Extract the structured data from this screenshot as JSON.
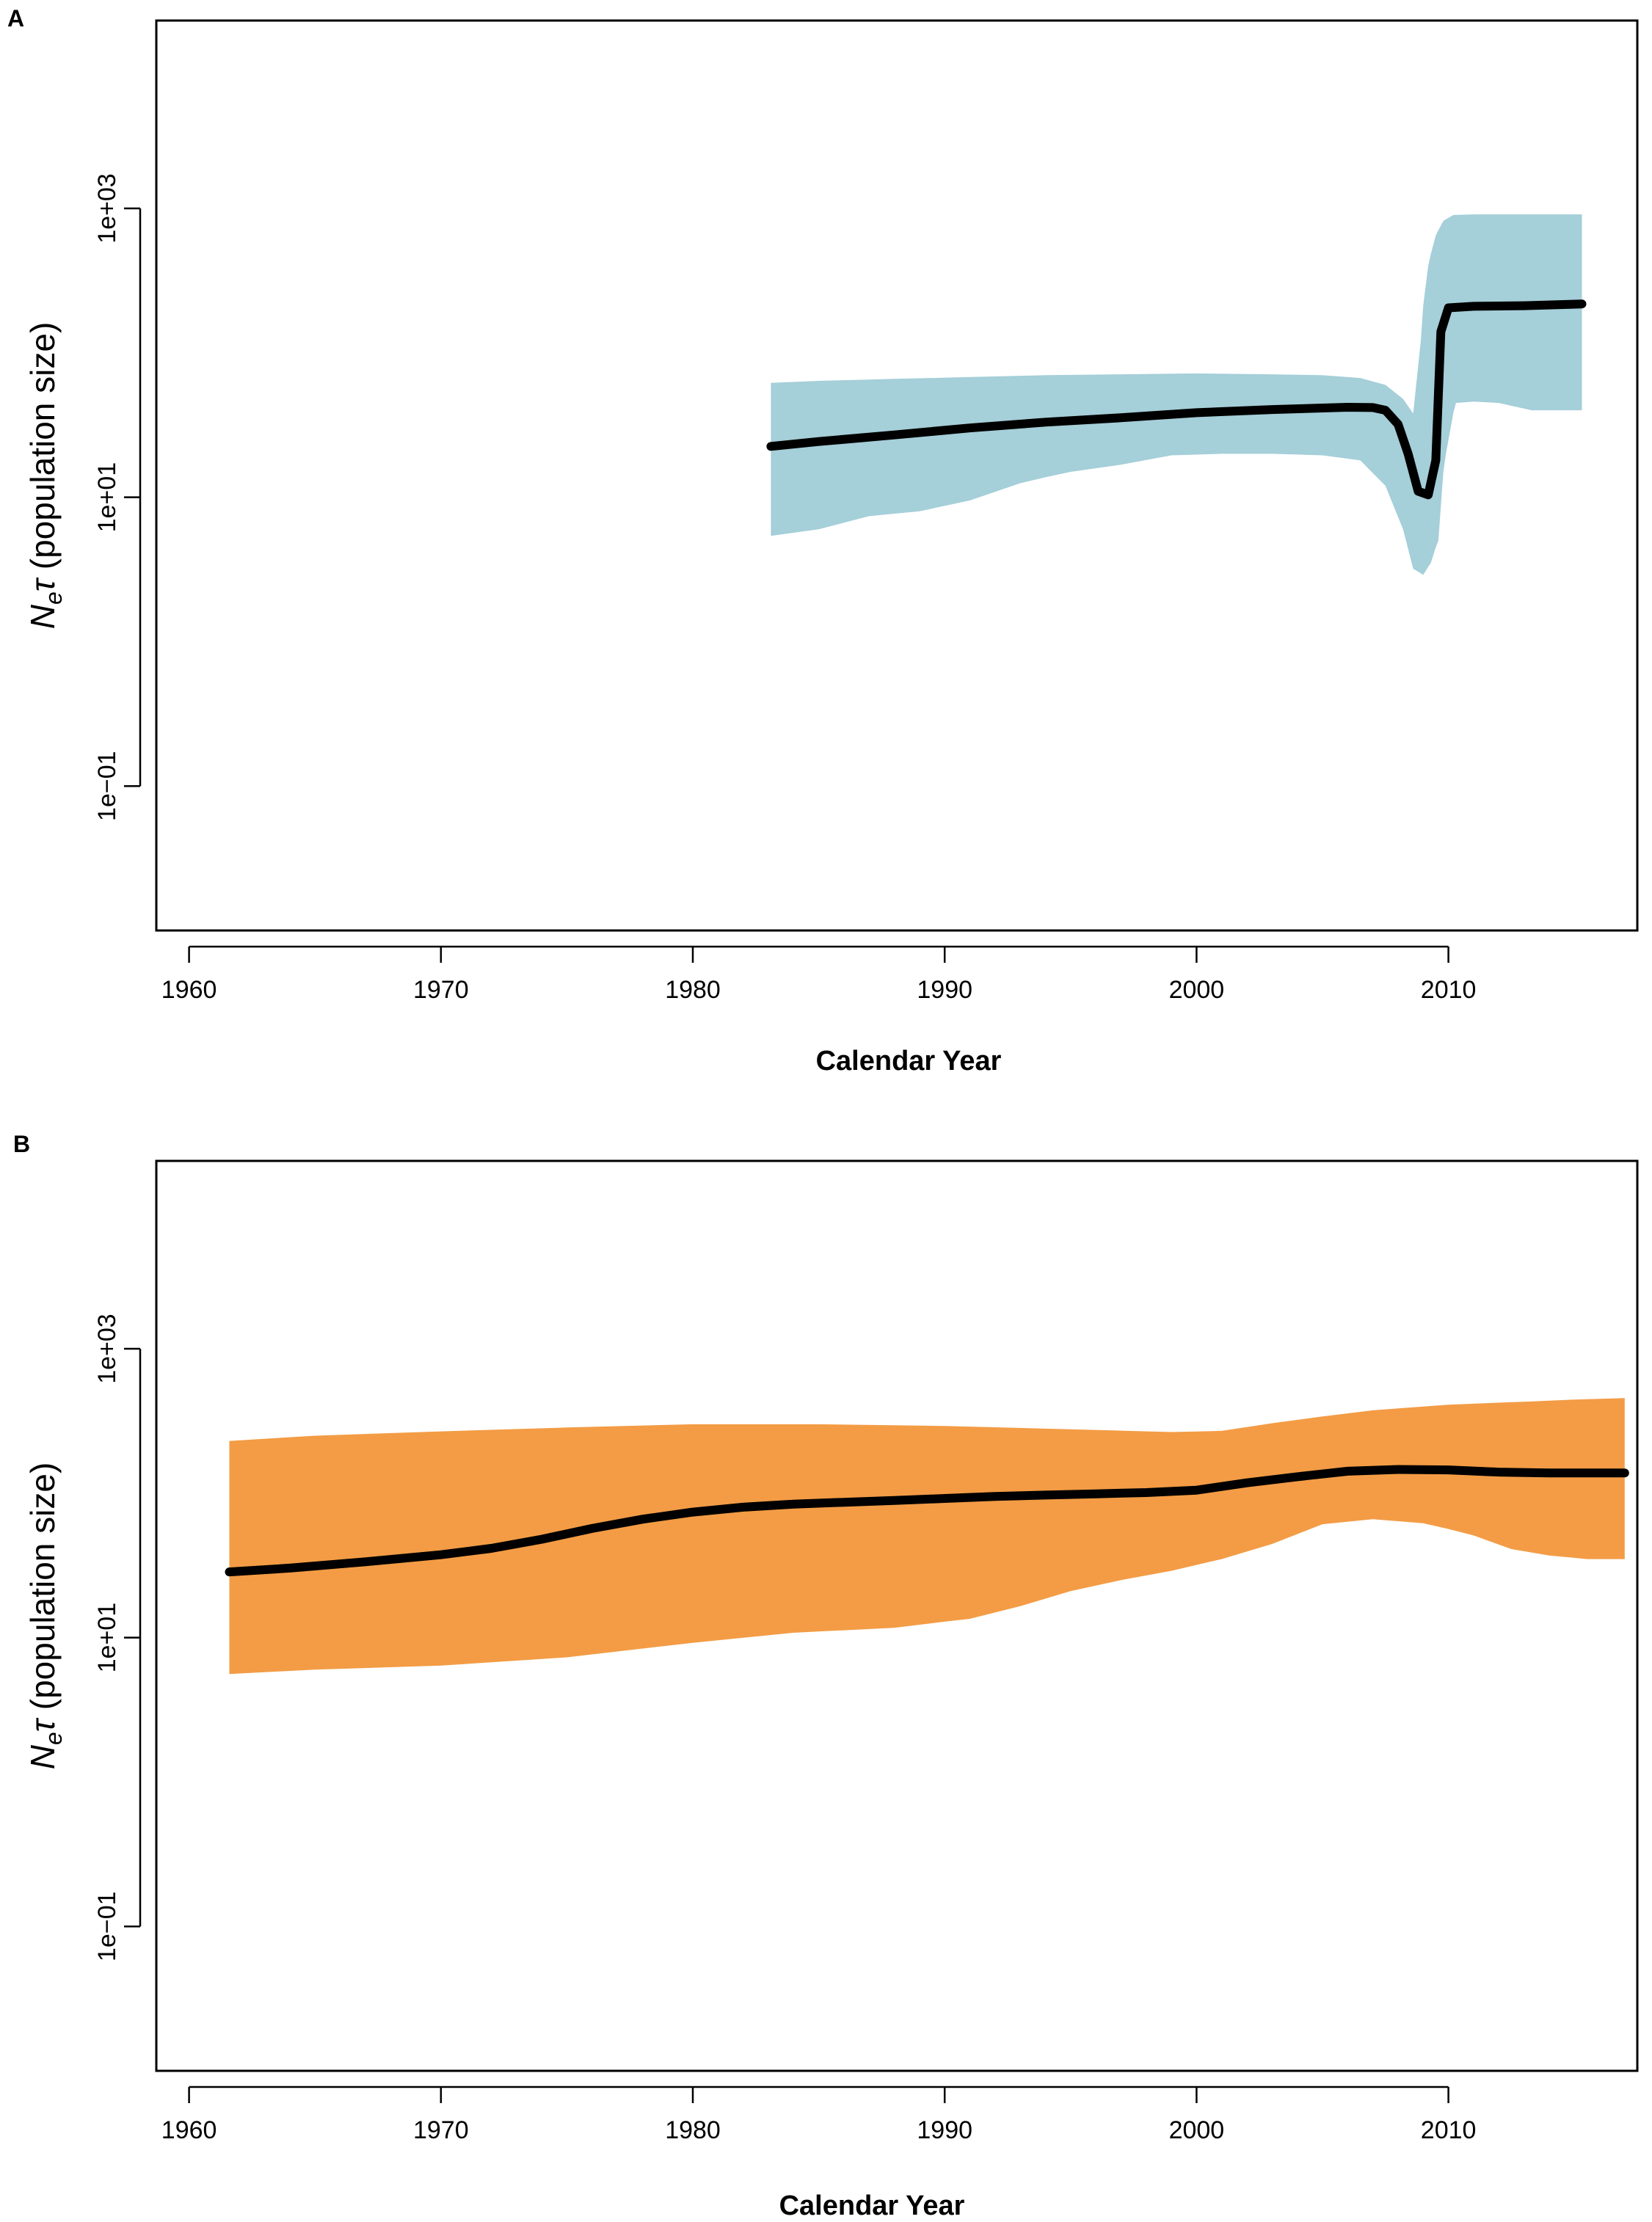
{
  "chart_data": [
    {
      "panel_label": "A",
      "type": "area",
      "xlabel": "Calendar Year",
      "ylabel_main": "N",
      "ylabel_sub": "e",
      "ylabel_tau": "τ",
      "ylabel_rest": " (population size)",
      "y_scale": "log10",
      "xlim": [
        1958.7,
        2017.5
      ],
      "ylim": [
        0.01,
        20000
      ],
      "x_ticks": [
        1960,
        1970,
        1980,
        1990,
        2000,
        2010
      ],
      "x_tick_labels": [
        "1960",
        "1970",
        "1980",
        "1990",
        "2000",
        "2010"
      ],
      "y_ticks": [
        0.1,
        10,
        1000
      ],
      "y_tick_labels": [
        "1e−01",
        "1e+01",
        "1e+03"
      ],
      "band_color": "#a5cfd9",
      "line_color": "#000000",
      "series": [
        {
          "name": "median",
          "x": [
            1983.1,
            1985,
            1988,
            1991,
            1994,
            1997,
            2000,
            2003,
            2006,
            2007,
            2007.5,
            2008,
            2008.4,
            2008.8,
            2009.2,
            2009.5,
            2009.7,
            2010,
            2011,
            2013,
            2015.3
          ],
          "y": [
            22.5,
            24.3,
            27.0,
            30.2,
            33.1,
            35.5,
            38.5,
            40.5,
            42.0,
            41.8,
            40.0,
            32.0,
            20.0,
            11.0,
            10.4,
            18.0,
            140,
            205,
            210,
            212,
            218
          ]
        },
        {
          "name": "lower_95",
          "x": [
            1983.1,
            1985,
            1987,
            1989,
            1991,
            1993,
            1995,
            1997,
            1999,
            2001,
            2003,
            2005,
            2006.5,
            2007.5,
            2008.2,
            2008.6,
            2009.0,
            2009.3,
            2009.6,
            2009.9,
            2010.3,
            2011,
            2012,
            2013.3,
            2015.3
          ],
          "y": [
            5.4,
            6.0,
            7.4,
            8.0,
            9.5,
            12.5,
            15.0,
            16.8,
            19.5,
            20.0,
            20.0,
            19.5,
            18.0,
            12.0,
            6.0,
            3.2,
            2.9,
            3.5,
            5.0,
            20.0,
            45.0,
            46.0,
            45.0,
            40.0,
            40.0
          ]
        },
        {
          "name": "upper_95",
          "x": [
            1983.1,
            1985,
            1988,
            1991,
            1994,
            1997,
            2000,
            2003,
            2005,
            2006.5,
            2007.5,
            2008.2,
            2008.6,
            2008.9,
            2009.2,
            2009.5,
            2009.8,
            2010.2,
            2011,
            2013,
            2015.3
          ],
          "y": [
            62,
            64,
            66,
            68,
            70,
            71,
            72,
            71,
            70,
            67,
            60,
            48,
            38,
            120,
            400,
            650,
            820,
            900,
            910,
            910,
            910
          ]
        }
      ]
    },
    {
      "panel_label": "B",
      "type": "area",
      "xlabel": "Calendar Year",
      "ylabel_main": "N",
      "ylabel_sub": "e",
      "ylabel_tau": "τ",
      "ylabel_rest": " (population size)",
      "y_scale": "log10",
      "xlim": [
        1958.7,
        2017.5
      ],
      "ylim": [
        0.01,
        20000
      ],
      "x_ticks": [
        1960,
        1970,
        1980,
        1990,
        2000,
        2010
      ],
      "x_tick_labels": [
        "1960",
        "1970",
        "1980",
        "1990",
        "2000",
        "2010"
      ],
      "y_ticks": [
        0.1,
        10,
        1000
      ],
      "y_tick_labels": [
        "1e−01",
        "1e+01",
        "1e+03"
      ],
      "band_color": "#f39c45",
      "line_color": "#000000",
      "series": [
        {
          "name": "median",
          "x": [
            1961.6,
            1964,
            1967,
            1970,
            1972,
            1974,
            1976,
            1978,
            1980,
            1982,
            1984,
            1986,
            1988,
            1990,
            1992,
            1994,
            1996,
            1998,
            2000,
            2002,
            2004,
            2006,
            2008,
            2010,
            2012,
            2014,
            2017.0
          ],
          "y": [
            28.5,
            30.3,
            33.5,
            37.5,
            41.5,
            48.0,
            57.0,
            66.0,
            74.0,
            80.0,
            84.0,
            86.5,
            89.0,
            92.0,
            95.0,
            97.0,
            99.0,
            101,
            105,
            118,
            130,
            142,
            146,
            145,
            140,
            138,
            138
          ]
        },
        {
          "name": "lower_95",
          "x": [
            1961.6,
            1965,
            1970,
            1975,
            1980,
            1984,
            1988,
            1991,
            1993,
            1995,
            1997,
            1999,
            2001,
            2003,
            2005,
            2007,
            2009,
            2011,
            2012.5,
            2014,
            2015.5,
            2017.0
          ],
          "y": [
            5.6,
            6.0,
            6.4,
            7.3,
            9.2,
            10.8,
            11.7,
            13.5,
            16.5,
            21.0,
            25.0,
            29.0,
            35.0,
            44.5,
            61.0,
            66.0,
            62.0,
            51.0,
            41.0,
            37.0,
            35.0,
            35.0
          ]
        },
        {
          "name": "upper_95",
          "x": [
            1961.6,
            1965,
            1970,
            1975,
            1980,
            1985,
            1990,
            1995,
            1999,
            2001,
            2003,
            2005,
            2007,
            2010,
            2013,
            2015,
            2017.0
          ],
          "y": [
            230,
            250,
            268,
            285,
            300,
            300,
            292,
            277,
            265,
            270,
            305,
            340,
            375,
            410,
            430,
            445,
            455
          ]
        }
      ]
    }
  ]
}
